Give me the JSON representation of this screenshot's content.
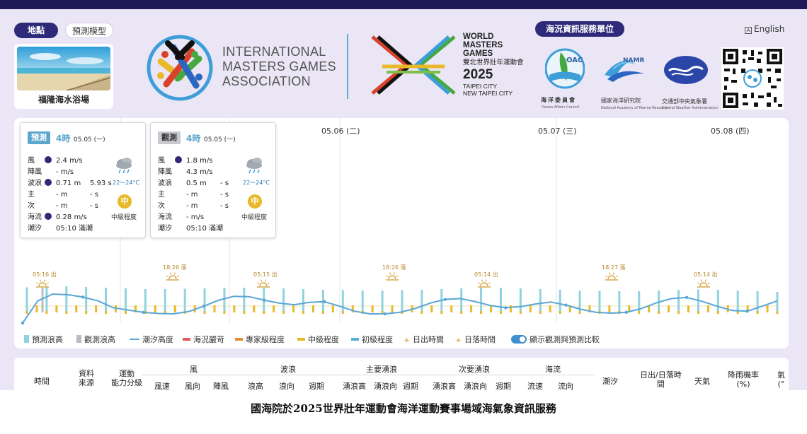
{
  "header": {
    "location_tab": "地點",
    "model_tab": "預測模型",
    "agency_tab": "海況資訊服務單位",
    "language": "English",
    "location_name": "福隆海水浴場"
  },
  "imga": {
    "line1": "INTERNATIONAL",
    "line2": "MASTERS GAMES",
    "line3": "ASSOCIATION"
  },
  "wmg": {
    "line1": "WORLD",
    "line2": "MASTERS",
    "line3": "GAMES",
    "zh": "雙北世界壯年運動會",
    "year": "2025",
    "city1": "TAIPEI CITY",
    "city2": "NEW TAIPEI CITY"
  },
  "agencies": {
    "oac_badge": "OAC",
    "oac_zh": "海洋委員會",
    "oac_en": "Ocean Affairs Council",
    "namr_badge": "NAMR",
    "namr_zh": "國家海洋研究院",
    "namr_en": "National Academy of Marine Research",
    "cwa_zh": "交通部中央氣象署",
    "cwa_en": "Central Weather Administration"
  },
  "chart_data": {
    "type": "bar",
    "dates": [
      "05.05 (一)",
      "05.06 (二)",
      "05.07 (三)",
      "05.08 (四)"
    ],
    "sun_events": [
      {
        "time": "05:16 出",
        "kind": "rise"
      },
      {
        "time": "18:26 落",
        "kind": "set"
      },
      {
        "time": "05:15 出",
        "kind": "rise"
      },
      {
        "time": "18:26 落",
        "kind": "set"
      },
      {
        "time": "05:14 出",
        "kind": "rise"
      },
      {
        "time": "18:27 落",
        "kind": "set"
      },
      {
        "time": "05:14 出",
        "kind": "rise"
      }
    ],
    "legend": [
      "預測浪高",
      "觀測浪高",
      "潮汐高度",
      "海況嚴苛",
      "專家級程度",
      "中級程度",
      "初級程度",
      "日出時間",
      "日落時間",
      "顯示觀測與預測比較"
    ],
    "tide_heights": [
      0.0,
      0.58,
      0.76,
      0.74,
      0.68,
      0.58,
      0.4,
      0.34,
      0.28,
      0.25,
      0.24,
      0.3,
      0.44,
      0.6,
      0.7,
      0.69,
      0.6,
      0.52,
      0.48,
      0.54,
      0.56,
      0.44,
      0.31,
      0.24,
      0.24,
      0.28,
      0.38,
      0.52,
      0.62,
      0.64,
      0.56,
      0.46,
      0.4,
      0.43,
      0.5,
      0.55,
      0.47,
      0.36,
      0.28,
      0.26,
      0.28,
      0.38,
      0.53,
      0.64,
      0.67,
      0.57,
      0.44,
      0.33,
      0.31,
      0.44,
      0.58
    ],
    "forecast_wave": [
      0.71,
      0.72,
      0.74,
      0.72,
      0.7,
      0.68,
      0.66,
      0.66,
      0.67,
      0.68,
      0.7,
      0.7,
      0.69,
      0.68,
      0.66,
      0.64,
      0.63,
      0.62,
      0.62,
      0.63,
      0.64,
      0.66,
      0.68,
      0.7,
      0.7,
      0.68,
      0.66,
      0.64,
      0.62,
      0.61,
      0.6,
      0.6,
      0.62,
      0.64,
      0.65,
      0.64,
      0.62,
      0.6,
      0.58
    ],
    "observed_wave": [
      0.5,
      0.0,
      0.0,
      0.0,
      0.0,
      0.0
    ],
    "levels": [
      "intermediate",
      "intermediate",
      "intermediate",
      "intermediate"
    ]
  },
  "forecast_popup": {
    "badge": "預測",
    "hour": "4時",
    "date": "05.05 (一)",
    "rows": [
      {
        "label": "風",
        "value": "2.4 m/s",
        "extra": "",
        "dot": true
      },
      {
        "label": "陣風",
        "value": "- m/s",
        "extra": "",
        "dot": false
      },
      {
        "label": "波浪",
        "value": "0.71 m",
        "extra": "5.93 s",
        "dot": true
      },
      {
        "label": "主",
        "value": "- m",
        "extra": "- s",
        "dot": false
      },
      {
        "label": "次",
        "value": "- m",
        "extra": "- s",
        "dot": false
      },
      {
        "label": "海流",
        "value": "0.28 m/s",
        "extra": "",
        "dot": true
      },
      {
        "label": "潮汐",
        "value": "05:10 滿潮",
        "extra": "",
        "dot": false
      }
    ],
    "temp": "22～24°C",
    "level_badge": "中",
    "level_label": "中級程度"
  },
  "observed_popup": {
    "badge": "觀測",
    "hour": "4時",
    "date": "05.05 (一)",
    "rows": [
      {
        "label": "風",
        "value": "1.8 m/s",
        "extra": "",
        "dot": true
      },
      {
        "label": "陣風",
        "value": "4.3 m/s",
        "extra": "",
        "dot": false
      },
      {
        "label": "波浪",
        "value": "0.5 m",
        "extra": "- s",
        "dot": false
      },
      {
        "label": "主",
        "value": "- m",
        "extra": "- s",
        "dot": false
      },
      {
        "label": "次",
        "value": "- m",
        "extra": "- s",
        "dot": false
      },
      {
        "label": "海流",
        "value": "- m/s",
        "extra": "",
        "dot": false
      },
      {
        "label": "潮汐",
        "value": "05:10 滿潮",
        "extra": "",
        "dot": false
      }
    ],
    "temp": "22～24°C",
    "level_badge": "中",
    "level_label": "中級程度"
  },
  "table": {
    "time": "時間",
    "source1": "資料",
    "source2": "來源",
    "ability1": "運動",
    "ability2": "能力分級",
    "group_wind": "風",
    "group_wave": "波浪",
    "group_main": "主要湧浪",
    "group_second": "次要湧浪",
    "group_current": "海流",
    "tide": "潮汐",
    "sun1": "日出/日落時",
    "sun2": "間",
    "weather": "天氣",
    "rain1": "降雨機率",
    "rain2": "(%)",
    "more1": "氣",
    "more2": "(°",
    "sub": [
      "風速",
      "風向",
      "陣風",
      "浪高",
      "浪向",
      "週期",
      "湧浪高",
      "湧浪向",
      "週期",
      "湧浪高",
      "湧浪向",
      "週期",
      "流速",
      "流向"
    ]
  },
  "caption": "國海院於2025世界壯年運動會海洋運動賽事場域海氣象資訊服務",
  "colors": {
    "navy": "#2e2a7a",
    "tide": "#5aa6d6",
    "forecast_bar": "#8fd3e0",
    "observed_bar": "#b9bdc3",
    "intermediate": "#e8b92a",
    "severe": "#e05a5a",
    "expert": "#e08a3a",
    "beginner": "#5aaed6",
    "sun": "#d9a84a"
  }
}
